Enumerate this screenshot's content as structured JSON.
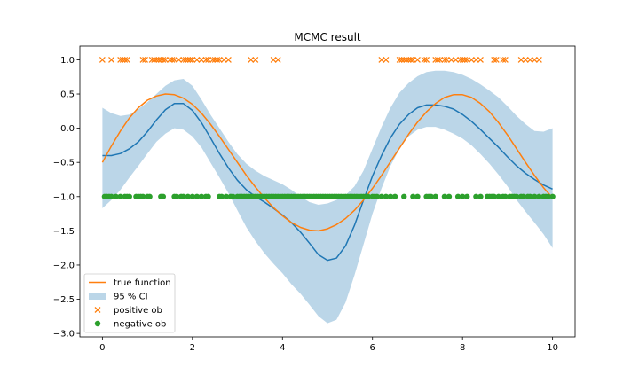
{
  "chart_data": {
    "type": "line",
    "title": "MCMC result",
    "xlabel": "",
    "ylabel": "",
    "xlim": [
      -0.5,
      10.5
    ],
    "ylim": [
      -3.05,
      1.2
    ],
    "xticks": [
      0,
      2,
      4,
      6,
      8,
      10
    ],
    "xtick_labels": [
      "0",
      "2",
      "4",
      "6",
      "8",
      "10"
    ],
    "yticks": [
      1.0,
      0.5,
      0.0,
      -0.5,
      -1.0,
      -1.5,
      -2.0,
      -2.5,
      -3.0
    ],
    "ytick_labels": [
      "1.0",
      "0.5",
      "0.0",
      "−0.5",
      "−1.0",
      "−1.5",
      "−2.0",
      "−2.5",
      "−3.0"
    ],
    "grid": false,
    "legend_position": "lower-left",
    "series": [
      {
        "name": "",
        "kind": "line",
        "color": "#1f77b4",
        "x": [
          0,
          0.2,
          0.4,
          0.6,
          0.8,
          1.0,
          1.2,
          1.4,
          1.6,
          1.8,
          2.0,
          2.2,
          2.4,
          2.6,
          2.8,
          3.0,
          3.2,
          3.4,
          3.6,
          3.8,
          4.0,
          4.2,
          4.4,
          4.6,
          4.8,
          5.0,
          5.2,
          5.4,
          5.6,
          5.8,
          6.0,
          6.2,
          6.4,
          6.6,
          6.8,
          7.0,
          7.2,
          7.4,
          7.6,
          7.8,
          8.0,
          8.2,
          8.4,
          8.6,
          8.8,
          9.0,
          9.2,
          9.4,
          9.6,
          9.8,
          10.0
        ],
        "y": [
          -0.4,
          -0.4,
          -0.37,
          -0.3,
          -0.2,
          -0.05,
          0.12,
          0.27,
          0.36,
          0.36,
          0.26,
          0.08,
          -0.14,
          -0.37,
          -0.58,
          -0.76,
          -0.9,
          -1.0,
          -1.08,
          -1.17,
          -1.27,
          -1.38,
          -1.52,
          -1.68,
          -1.85,
          -1.93,
          -1.9,
          -1.72,
          -1.42,
          -1.05,
          -0.7,
          -0.4,
          -0.14,
          0.06,
          0.2,
          0.3,
          0.34,
          0.34,
          0.32,
          0.28,
          0.2,
          0.1,
          -0.02,
          -0.15,
          -0.28,
          -0.42,
          -0.55,
          -0.66,
          -0.75,
          -0.83,
          -0.89
        ]
      },
      {
        "name": "true function",
        "kind": "line",
        "color": "#ff7f0e",
        "x": [
          0,
          0.2,
          0.4,
          0.6,
          0.8,
          1.0,
          1.2,
          1.4,
          1.6,
          1.8,
          2.0,
          2.2,
          2.4,
          2.6,
          2.8,
          3.0,
          3.2,
          3.4,
          3.6,
          3.8,
          4.0,
          4.2,
          4.4,
          4.6,
          4.8,
          5.0,
          5.2,
          5.4,
          5.6,
          5.8,
          6.0,
          6.2,
          6.4,
          6.6,
          6.8,
          7.0,
          7.2,
          7.4,
          7.6,
          7.8,
          8.0,
          8.2,
          8.4,
          8.6,
          8.8,
          9.0,
          9.2,
          9.4,
          9.6,
          9.8,
          10.0
        ],
        "y": [
          -0.5,
          -0.26,
          -0.04,
          0.15,
          0.3,
          0.41,
          0.47,
          0.5,
          0.49,
          0.44,
          0.35,
          0.22,
          0.06,
          -0.12,
          -0.31,
          -0.5,
          -0.69,
          -0.86,
          -1.02,
          -1.16,
          -1.28,
          -1.38,
          -1.45,
          -1.49,
          -1.5,
          -1.47,
          -1.41,
          -1.32,
          -1.2,
          -1.05,
          -0.88,
          -0.69,
          -0.49,
          -0.29,
          -0.09,
          0.09,
          0.24,
          0.36,
          0.45,
          0.49,
          0.49,
          0.45,
          0.36,
          0.24,
          0.08,
          -0.1,
          -0.3,
          -0.5,
          -0.69,
          -0.87,
          -1.02
        ]
      },
      {
        "name": "95 % CI",
        "kind": "band",
        "color": "#1f77b4",
        "opacity": 0.3,
        "x": [
          0,
          0.2,
          0.4,
          0.6,
          0.8,
          1.0,
          1.2,
          1.4,
          1.6,
          1.8,
          2.0,
          2.2,
          2.4,
          2.6,
          2.8,
          3.0,
          3.2,
          3.4,
          3.6,
          3.8,
          4.0,
          4.2,
          4.4,
          4.6,
          4.8,
          5.0,
          5.2,
          5.4,
          5.6,
          5.8,
          6.0,
          6.2,
          6.4,
          6.6,
          6.8,
          7.0,
          7.2,
          7.4,
          7.6,
          7.8,
          8.0,
          8.2,
          8.4,
          8.6,
          8.8,
          9.0,
          9.2,
          9.4,
          9.6,
          9.8,
          10.0
        ],
        "lower": [
          -1.17,
          -1.05,
          -0.9,
          -0.72,
          -0.55,
          -0.37,
          -0.2,
          -0.08,
          0.0,
          -0.02,
          -0.12,
          -0.28,
          -0.5,
          -0.72,
          -0.95,
          -1.2,
          -1.45,
          -1.65,
          -1.83,
          -1.98,
          -2.12,
          -2.28,
          -2.42,
          -2.58,
          -2.75,
          -2.85,
          -2.8,
          -2.55,
          -2.15,
          -1.7,
          -1.25,
          -0.88,
          -0.55,
          -0.3,
          -0.12,
          -0.02,
          0.02,
          0.02,
          -0.02,
          -0.08,
          -0.15,
          -0.25,
          -0.38,
          -0.52,
          -0.68,
          -0.85,
          -1.05,
          -1.22,
          -1.38,
          -1.55,
          -1.75
        ],
        "upper": [
          0.3,
          0.22,
          0.18,
          0.2,
          0.28,
          0.38,
          0.5,
          0.62,
          0.7,
          0.72,
          0.62,
          0.42,
          0.2,
          0.0,
          -0.2,
          -0.38,
          -0.52,
          -0.62,
          -0.7,
          -0.76,
          -0.82,
          -0.9,
          -1.0,
          -1.08,
          -1.12,
          -1.1,
          -1.05,
          -0.98,
          -0.85,
          -0.62,
          -0.3,
          0.02,
          0.3,
          0.52,
          0.66,
          0.76,
          0.82,
          0.84,
          0.84,
          0.82,
          0.78,
          0.72,
          0.64,
          0.55,
          0.45,
          0.32,
          0.18,
          0.06,
          -0.04,
          -0.05,
          0.0
        ]
      },
      {
        "name": "positive ob",
        "kind": "scatter",
        "marker": "x",
        "color": "#ff7f0e",
        "x": [
          0.0,
          0.2,
          0.4,
          0.45,
          0.5,
          0.55,
          0.9,
          0.95,
          1.1,
          1.15,
          1.2,
          1.25,
          1.3,
          1.35,
          1.4,
          1.5,
          1.55,
          1.6,
          1.7,
          1.8,
          1.85,
          1.9,
          1.95,
          2.0,
          2.1,
          2.2,
          2.3,
          2.35,
          2.45,
          2.5,
          2.55,
          2.6,
          2.7,
          2.8,
          3.3,
          3.4,
          3.8,
          3.9,
          6.2,
          6.3,
          6.6,
          6.65,
          6.7,
          6.75,
          6.8,
          6.85,
          6.9,
          7.0,
          7.15,
          7.2,
          7.4,
          7.45,
          7.5,
          7.6,
          7.65,
          7.75,
          7.85,
          7.95,
          8.0,
          8.05,
          8.1,
          8.2,
          8.3,
          8.4,
          8.7,
          8.75,
          8.9,
          8.95,
          9.3,
          9.4,
          9.5,
          9.6,
          9.7
        ],
        "y": [
          1.0,
          1.0,
          1.0,
          1.0,
          1.0,
          1.0,
          1.0,
          1.0,
          1.0,
          1.0,
          1.0,
          1.0,
          1.0,
          1.0,
          1.0,
          1.0,
          1.0,
          1.0,
          1.0,
          1.0,
          1.0,
          1.0,
          1.0,
          1.0,
          1.0,
          1.0,
          1.0,
          1.0,
          1.0,
          1.0,
          1.0,
          1.0,
          1.0,
          1.0,
          1.0,
          1.0,
          1.0,
          1.0,
          1.0,
          1.0,
          1.0,
          1.0,
          1.0,
          1.0,
          1.0,
          1.0,
          1.0,
          1.0,
          1.0,
          1.0,
          1.0,
          1.0,
          1.0,
          1.0,
          1.0,
          1.0,
          1.0,
          1.0,
          1.0,
          1.0,
          1.0,
          1.0,
          1.0,
          1.0,
          1.0,
          1.0,
          1.0,
          1.0,
          1.0,
          1.0,
          1.0,
          1.0,
          1.0
        ]
      },
      {
        "name": "negative ob",
        "kind": "scatter",
        "marker": "o",
        "color": "#2ca02c",
        "x": [
          0.05,
          0.1,
          0.15,
          0.2,
          0.3,
          0.4,
          0.5,
          0.55,
          0.6,
          0.75,
          0.8,
          0.85,
          0.9,
          1.0,
          1.05,
          1.3,
          1.35,
          1.6,
          1.65,
          1.75,
          1.8,
          1.9,
          2.0,
          2.1,
          2.2,
          2.3,
          2.35,
          2.6,
          2.65,
          2.75,
          2.85,
          2.9,
          3.0,
          3.05,
          3.1,
          3.15,
          3.2,
          3.25,
          3.3,
          3.35,
          3.4,
          3.45,
          3.5,
          3.55,
          3.6,
          3.65,
          3.7,
          3.75,
          3.8,
          3.85,
          3.9,
          3.95,
          4.0,
          4.05,
          4.1,
          4.15,
          4.2,
          4.25,
          4.3,
          4.35,
          4.4,
          4.45,
          4.5,
          4.55,
          4.6,
          4.65,
          4.7,
          4.75,
          4.8,
          4.85,
          4.9,
          4.95,
          5.0,
          5.05,
          5.1,
          5.15,
          5.2,
          5.25,
          5.3,
          5.35,
          5.4,
          5.45,
          5.5,
          5.55,
          5.6,
          5.65,
          5.7,
          5.75,
          5.8,
          5.85,
          5.9,
          6.0,
          6.05,
          6.1,
          6.2,
          6.3,
          6.4,
          6.5,
          6.7,
          6.9,
          7.0,
          7.2,
          7.25,
          7.3,
          7.4,
          7.6,
          7.7,
          7.9,
          8.0,
          8.1,
          8.3,
          8.4,
          8.55,
          8.6,
          8.65,
          8.7,
          8.8,
          8.9,
          8.95,
          9.05,
          9.1,
          9.15,
          9.2,
          9.3,
          9.35,
          9.45,
          9.5,
          9.6,
          9.7,
          9.8,
          9.85,
          9.9,
          10.0
        ],
        "y": [
          -1.0,
          -1.0,
          -1.0,
          -1.0,
          -1.0,
          -1.0,
          -1.0,
          -1.0,
          -1.0,
          -1.0,
          -1.0,
          -1.0,
          -1.0,
          -1.0,
          -1.0,
          -1.0,
          -1.0,
          -1.0,
          -1.0,
          -1.0,
          -1.0,
          -1.0,
          -1.0,
          -1.0,
          -1.0,
          -1.0,
          -1.0,
          -1.0,
          -1.0,
          -1.0,
          -1.0,
          -1.0,
          -1.0,
          -1.0,
          -1.0,
          -1.0,
          -1.0,
          -1.0,
          -1.0,
          -1.0,
          -1.0,
          -1.0,
          -1.0,
          -1.0,
          -1.0,
          -1.0,
          -1.0,
          -1.0,
          -1.0,
          -1.0,
          -1.0,
          -1.0,
          -1.0,
          -1.0,
          -1.0,
          -1.0,
          -1.0,
          -1.0,
          -1.0,
          -1.0,
          -1.0,
          -1.0,
          -1.0,
          -1.0,
          -1.0,
          -1.0,
          -1.0,
          -1.0,
          -1.0,
          -1.0,
          -1.0,
          -1.0,
          -1.0,
          -1.0,
          -1.0,
          -1.0,
          -1.0,
          -1.0,
          -1.0,
          -1.0,
          -1.0,
          -1.0,
          -1.0,
          -1.0,
          -1.0,
          -1.0,
          -1.0,
          -1.0,
          -1.0,
          -1.0,
          -1.0,
          -1.0,
          -1.0,
          -1.0,
          -1.0,
          -1.0,
          -1.0,
          -1.0,
          -1.0,
          -1.0,
          -1.0,
          -1.0,
          -1.0,
          -1.0,
          -1.0,
          -1.0,
          -1.0,
          -1.0,
          -1.0,
          -1.0,
          -1.0,
          -1.0,
          -1.0,
          -1.0,
          -1.0,
          -1.0,
          -1.0,
          -1.0,
          -1.0,
          -1.0,
          -1.0,
          -1.0,
          -1.0,
          -1.0,
          -1.0,
          -1.0,
          -1.0,
          -1.0,
          -1.0,
          -1.0,
          -1.0,
          -1.0,
          -1.0
        ]
      }
    ],
    "legend": [
      "true function",
      "95 % CI",
      "positive ob",
      "negative ob"
    ]
  }
}
